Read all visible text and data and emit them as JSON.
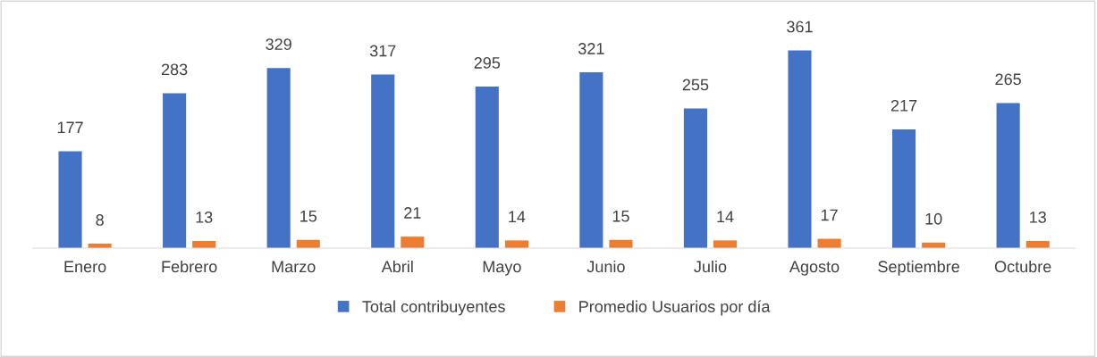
{
  "chart_data": {
    "type": "bar",
    "categories": [
      "Enero",
      "Febrero",
      "Marzo",
      "Abril",
      "Mayo",
      "Junio",
      "Julio",
      "Agosto",
      "Septiembre",
      "Octubre"
    ],
    "series": [
      {
        "name": "Total contribuyentes",
        "color": "#4472c4",
        "values": [
          177,
          283,
          329,
          317,
          295,
          321,
          255,
          361,
          217,
          265
        ]
      },
      {
        "name": "Promedio Usuarios por día",
        "color": "#ed7d31",
        "values": [
          8,
          13,
          15,
          21,
          14,
          15,
          14,
          17,
          10,
          13
        ]
      }
    ],
    "data_labels": true,
    "legend": "bottom",
    "grid": false,
    "tick_labels": "x"
  }
}
